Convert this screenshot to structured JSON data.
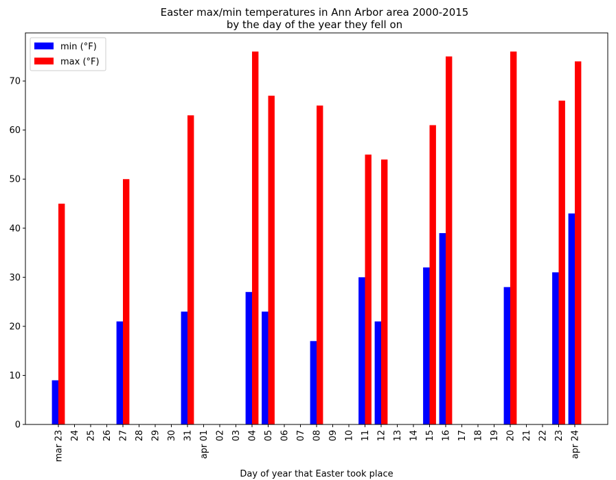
{
  "chart_data": {
    "type": "bar",
    "title": "Easter max/min temperatures in Ann Arbor area 2000-2015",
    "subtitle": "by the day of the year they fell on",
    "xlabel": "Day of year that Easter took place",
    "ylabel": "",
    "ylim": [
      0,
      80
    ],
    "yticks": [
      0,
      10,
      20,
      30,
      40,
      50,
      60,
      70
    ],
    "categories": [
      "mar 23",
      "24",
      "25",
      "26",
      "27",
      "28",
      "29",
      "30",
      "31",
      "apr 01",
      "02",
      "03",
      "04",
      "05",
      "06",
      "07",
      "08",
      "09",
      "10",
      "11",
      "12",
      "13",
      "14",
      "15",
      "16",
      "17",
      "18",
      "19",
      "20",
      "21",
      "22",
      "23",
      "apr 24"
    ],
    "series": [
      {
        "name": "min (°F)",
        "color": "#0000ff",
        "values": [
          9,
          null,
          null,
          null,
          21,
          null,
          null,
          null,
          23,
          null,
          null,
          null,
          27,
          23,
          null,
          null,
          17,
          null,
          null,
          30,
          21,
          null,
          null,
          32,
          39,
          null,
          null,
          null,
          28,
          null,
          null,
          31,
          43
        ]
      },
      {
        "name": "max (°F)",
        "color": "#ff0000",
        "values": [
          45,
          null,
          null,
          null,
          50,
          null,
          null,
          null,
          63,
          null,
          null,
          null,
          76,
          67,
          null,
          null,
          65,
          null,
          null,
          55,
          54,
          null,
          null,
          61,
          75,
          null,
          null,
          null,
          76,
          null,
          null,
          66,
          74
        ]
      }
    ],
    "legend_position": "top-left",
    "grid": false
  }
}
